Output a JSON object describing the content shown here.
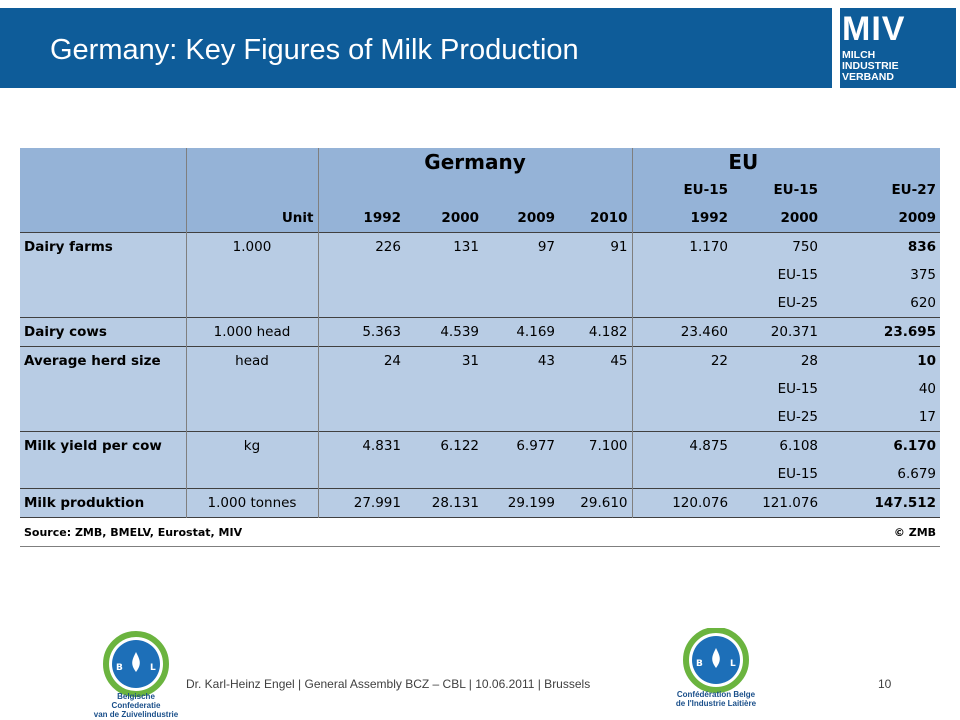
{
  "header": {
    "title": "Germany: Key Figures of Milk Production",
    "logo_main": "MIV",
    "logo_lines": [
      "MILCH",
      "INDUSTRIE",
      "VERBAND"
    ]
  },
  "table": {
    "group_headers": {
      "germany": "Germany",
      "eu": "EU"
    },
    "sub_headers": [
      "EU-15",
      "EU-15",
      "EU-27"
    ],
    "columns": [
      "Unit",
      "1992",
      "2000",
      "2009",
      "2010",
      "1992",
      "2000",
      "2009"
    ],
    "rows": [
      {
        "label": "Dairy farms",
        "unit": "1.000",
        "values": [
          "226",
          "131",
          "97",
          "91",
          "1.170",
          "750",
          "836"
        ],
        "extra": [
          {
            "tag": "EU-15",
            "value": "375"
          },
          {
            "tag": "EU-25",
            "value": "620"
          }
        ]
      },
      {
        "label": "Dairy cows",
        "unit": "1.000 head",
        "values": [
          "5.363",
          "4.539",
          "4.169",
          "4.182",
          "23.460",
          "20.371",
          "23.695"
        ],
        "extra": []
      },
      {
        "label": "Average herd size",
        "unit": "head",
        "values": [
          "24",
          "31",
          "43",
          "45",
          "22",
          "28",
          "10"
        ],
        "extra": [
          {
            "tag": "EU-15",
            "value": "40"
          },
          {
            "tag": "EU-25",
            "value": "17"
          }
        ]
      },
      {
        "label": "Milk yield per cow",
        "unit": "kg",
        "values": [
          "4.831",
          "6.122",
          "6.977",
          "7.100",
          "4.875",
          "6.108",
          "6.170"
        ],
        "extra": [
          {
            "tag": "EU-15",
            "value": "6.679"
          }
        ]
      },
      {
        "label": "Milk produktion",
        "unit": "1.000 tonnes",
        "values": [
          "27.991",
          "28.131",
          "29.199",
          "29.610",
          "120.076",
          "121.076",
          "147.512"
        ],
        "extra": []
      }
    ],
    "source": "Source: ZMB, BMELV, Eurostat, MIV",
    "copyright": "© ZMB"
  },
  "footer": {
    "text": "Dr. Karl-Heinz Engel | General Assembly BCZ – CBL | 10.06.2011 | Brussels",
    "page": "10",
    "logo_left_lines": [
      "Belgische Confederatie",
      "van de Zuivelindustrie"
    ],
    "logo_right_lines": [
      "Confédération Belge",
      "de l'Industrie Laitière"
    ],
    "logo_mark": "BCZ·CBL"
  },
  "colors": {
    "header": "#0e5c99",
    "table_header": "#95b3d7",
    "table_body": "#b8cce4"
  }
}
